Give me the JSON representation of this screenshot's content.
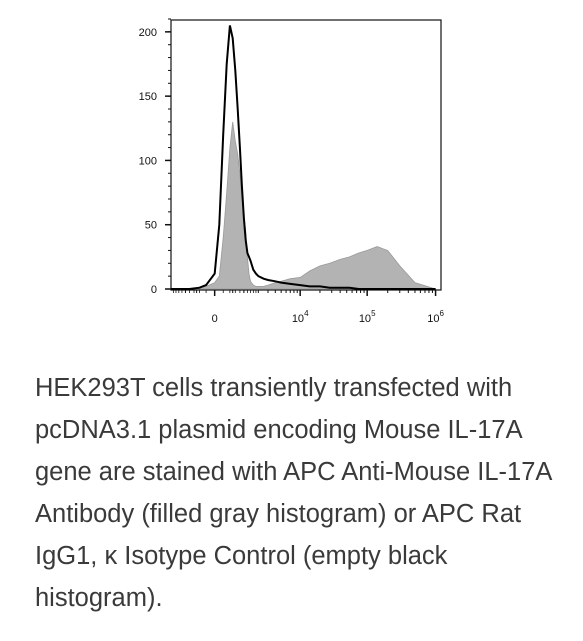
{
  "chart_data": {
    "type": "area",
    "title": "",
    "xlabel": "",
    "ylabel": "",
    "ylim": [
      0,
      210
    ],
    "y_ticks": [
      "0",
      "50",
      "100",
      "150",
      "200"
    ],
    "x_scale": "biexponential",
    "x_ticks": [
      {
        "value": "0",
        "base": "0",
        "exp": ""
      },
      {
        "value": "10000",
        "base": "10",
        "exp": "4"
      },
      {
        "value": "100000",
        "base": "10",
        "exp": "5"
      },
      {
        "value": "1000000",
        "base": "10",
        "exp": "6"
      }
    ],
    "grid": false,
    "legend": "none",
    "series": [
      {
        "style": "filled",
        "color": "#b3b3b3",
        "x": [
          -2000,
          -800,
          -400,
          -200,
          0,
          100,
          200,
          300,
          400,
          500,
          600,
          700,
          800,
          900,
          1000,
          1100,
          1200,
          1300,
          1400,
          1600,
          1800,
          2000,
          2500,
          3000,
          4000,
          5000,
          7000,
          10000,
          14000,
          20000,
          28000,
          40000,
          55000,
          75000,
          100000,
          140000,
          200000,
          300000,
          500000,
          1000000
        ],
        "values": [
          0,
          0,
          1,
          2,
          5,
          10,
          40,
          75,
          110,
          130,
          115,
          105,
          90,
          70,
          58,
          45,
          25,
          12,
          6,
          3,
          2,
          2,
          2,
          3,
          5,
          6,
          8,
          9,
          14,
          18,
          20,
          23,
          25,
          28,
          30,
          33,
          30,
          18,
          5,
          0
        ]
      },
      {
        "style": "line",
        "color": "#000000",
        "x": [
          -2000,
          -800,
          -400,
          -200,
          0,
          100,
          200,
          300,
          400,
          500,
          600,
          700,
          800,
          900,
          1000,
          1100,
          1200,
          1300,
          1400,
          1600,
          1800,
          2000,
          2500,
          3000,
          4000,
          5000,
          7000,
          10000,
          14000,
          20000,
          28000,
          40000,
          55000,
          75000,
          100000,
          140000,
          200000,
          300000,
          500000,
          1000000
        ],
        "values": [
          0,
          0,
          1,
          3,
          12,
          50,
          120,
          175,
          205,
          195,
          170,
          140,
          110,
          80,
          55,
          38,
          28,
          25,
          22,
          15,
          12,
          10,
          8,
          7,
          6,
          5,
          4,
          3,
          2,
          2,
          1,
          1,
          1,
          0,
          0,
          0,
          0,
          0,
          0,
          0
        ]
      }
    ]
  },
  "caption": "HEK293T cells transiently transfected with pcDNA3.1 plasmid encoding Mouse IL-17A gene are stained with APC Anti-Mouse IL-17A Antibody (filled gray histogram) or APC Rat IgG1, κ Isotype Control (empty black histogram)."
}
